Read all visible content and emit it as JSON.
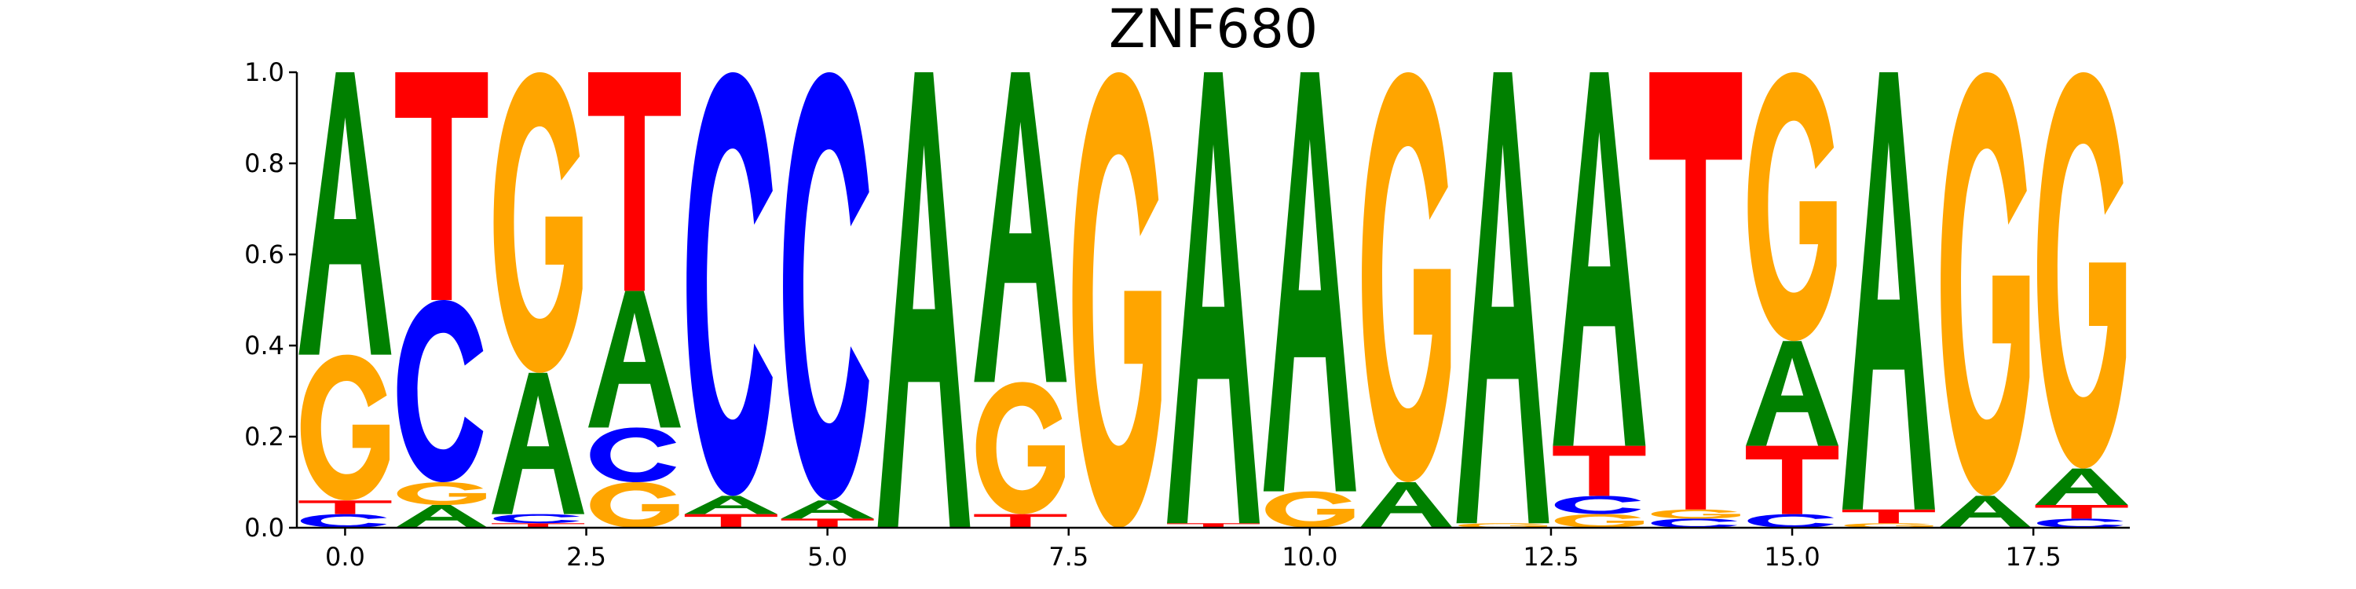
{
  "chart_data": {
    "type": "sequence_logo",
    "title": "ZNF680",
    "xlabel": "",
    "ylabel": "",
    "xlim": [
      -0.5,
      18.5
    ],
    "ylim": [
      0,
      1.0
    ],
    "xticks": [
      0.0,
      2.5,
      5.0,
      7.5,
      10.0,
      12.5,
      15.0,
      17.5
    ],
    "xtick_labels": [
      "0.0",
      "2.5",
      "5.0",
      "7.5",
      "10.0",
      "12.5",
      "15.0",
      "17.5"
    ],
    "yticks": [
      0.0,
      0.2,
      0.4,
      0.6,
      0.8,
      1.0
    ],
    "ytick_labels": [
      "0.0",
      "0.2",
      "0.4",
      "0.6",
      "0.8",
      "1.0"
    ],
    "grid": false,
    "colors": {
      "A": "#008000",
      "C": "#0000ff",
      "G": "#ffa500",
      "T": "#ff0000"
    },
    "positions": [
      {
        "pos": 0,
        "A": 0.62,
        "C": 0.03,
        "G": 0.32,
        "T": 0.03
      },
      {
        "pos": 1,
        "A": 0.05,
        "C": 0.4,
        "G": 0.05,
        "T": 0.5
      },
      {
        "pos": 2,
        "A": 0.31,
        "C": 0.02,
        "G": 0.66,
        "T": 0.01
      },
      {
        "pos": 3,
        "A": 0.3,
        "C": 0.12,
        "G": 0.1,
        "T": 0.48
      },
      {
        "pos": 4,
        "A": 0.04,
        "C": 0.93,
        "G": 0.0,
        "T": 0.03
      },
      {
        "pos": 5,
        "A": 0.04,
        "C": 0.94,
        "G": 0.0,
        "T": 0.02
      },
      {
        "pos": 6,
        "A": 1.0,
        "C": 0.0,
        "G": 0.0,
        "T": 0.0
      },
      {
        "pos": 7,
        "A": 0.68,
        "C": 0.0,
        "G": 0.29,
        "T": 0.03
      },
      {
        "pos": 8,
        "A": 0.0,
        "C": 0.0,
        "G": 1.0,
        "T": 0.0
      },
      {
        "pos": 9,
        "A": 0.99,
        "C": 0.0,
        "G": 0.0,
        "T": 0.01
      },
      {
        "pos": 10,
        "A": 0.92,
        "C": 0.0,
        "G": 0.08,
        "T": 0.0
      },
      {
        "pos": 11,
        "A": 0.1,
        "C": 0.0,
        "G": 0.9,
        "T": 0.0
      },
      {
        "pos": 12,
        "A": 0.99,
        "C": 0.0,
        "G": 0.01,
        "T": 0.0
      },
      {
        "pos": 13,
        "A": 0.82,
        "C": 0.04,
        "G": 0.03,
        "T": 0.11
      },
      {
        "pos": 14,
        "A": 0.0,
        "C": 0.02,
        "G": 0.02,
        "T": 0.96
      },
      {
        "pos": 15,
        "A": 0.23,
        "C": 0.03,
        "G": 0.59,
        "T": 0.15
      },
      {
        "pos": 16,
        "A": 0.96,
        "C": 0.0,
        "G": 0.01,
        "T": 0.03
      },
      {
        "pos": 17,
        "A": 0.07,
        "C": 0.0,
        "G": 0.93,
        "T": 0.0
      },
      {
        "pos": 18,
        "A": 0.08,
        "C": 0.02,
        "G": 0.87,
        "T": 0.03
      }
    ]
  }
}
